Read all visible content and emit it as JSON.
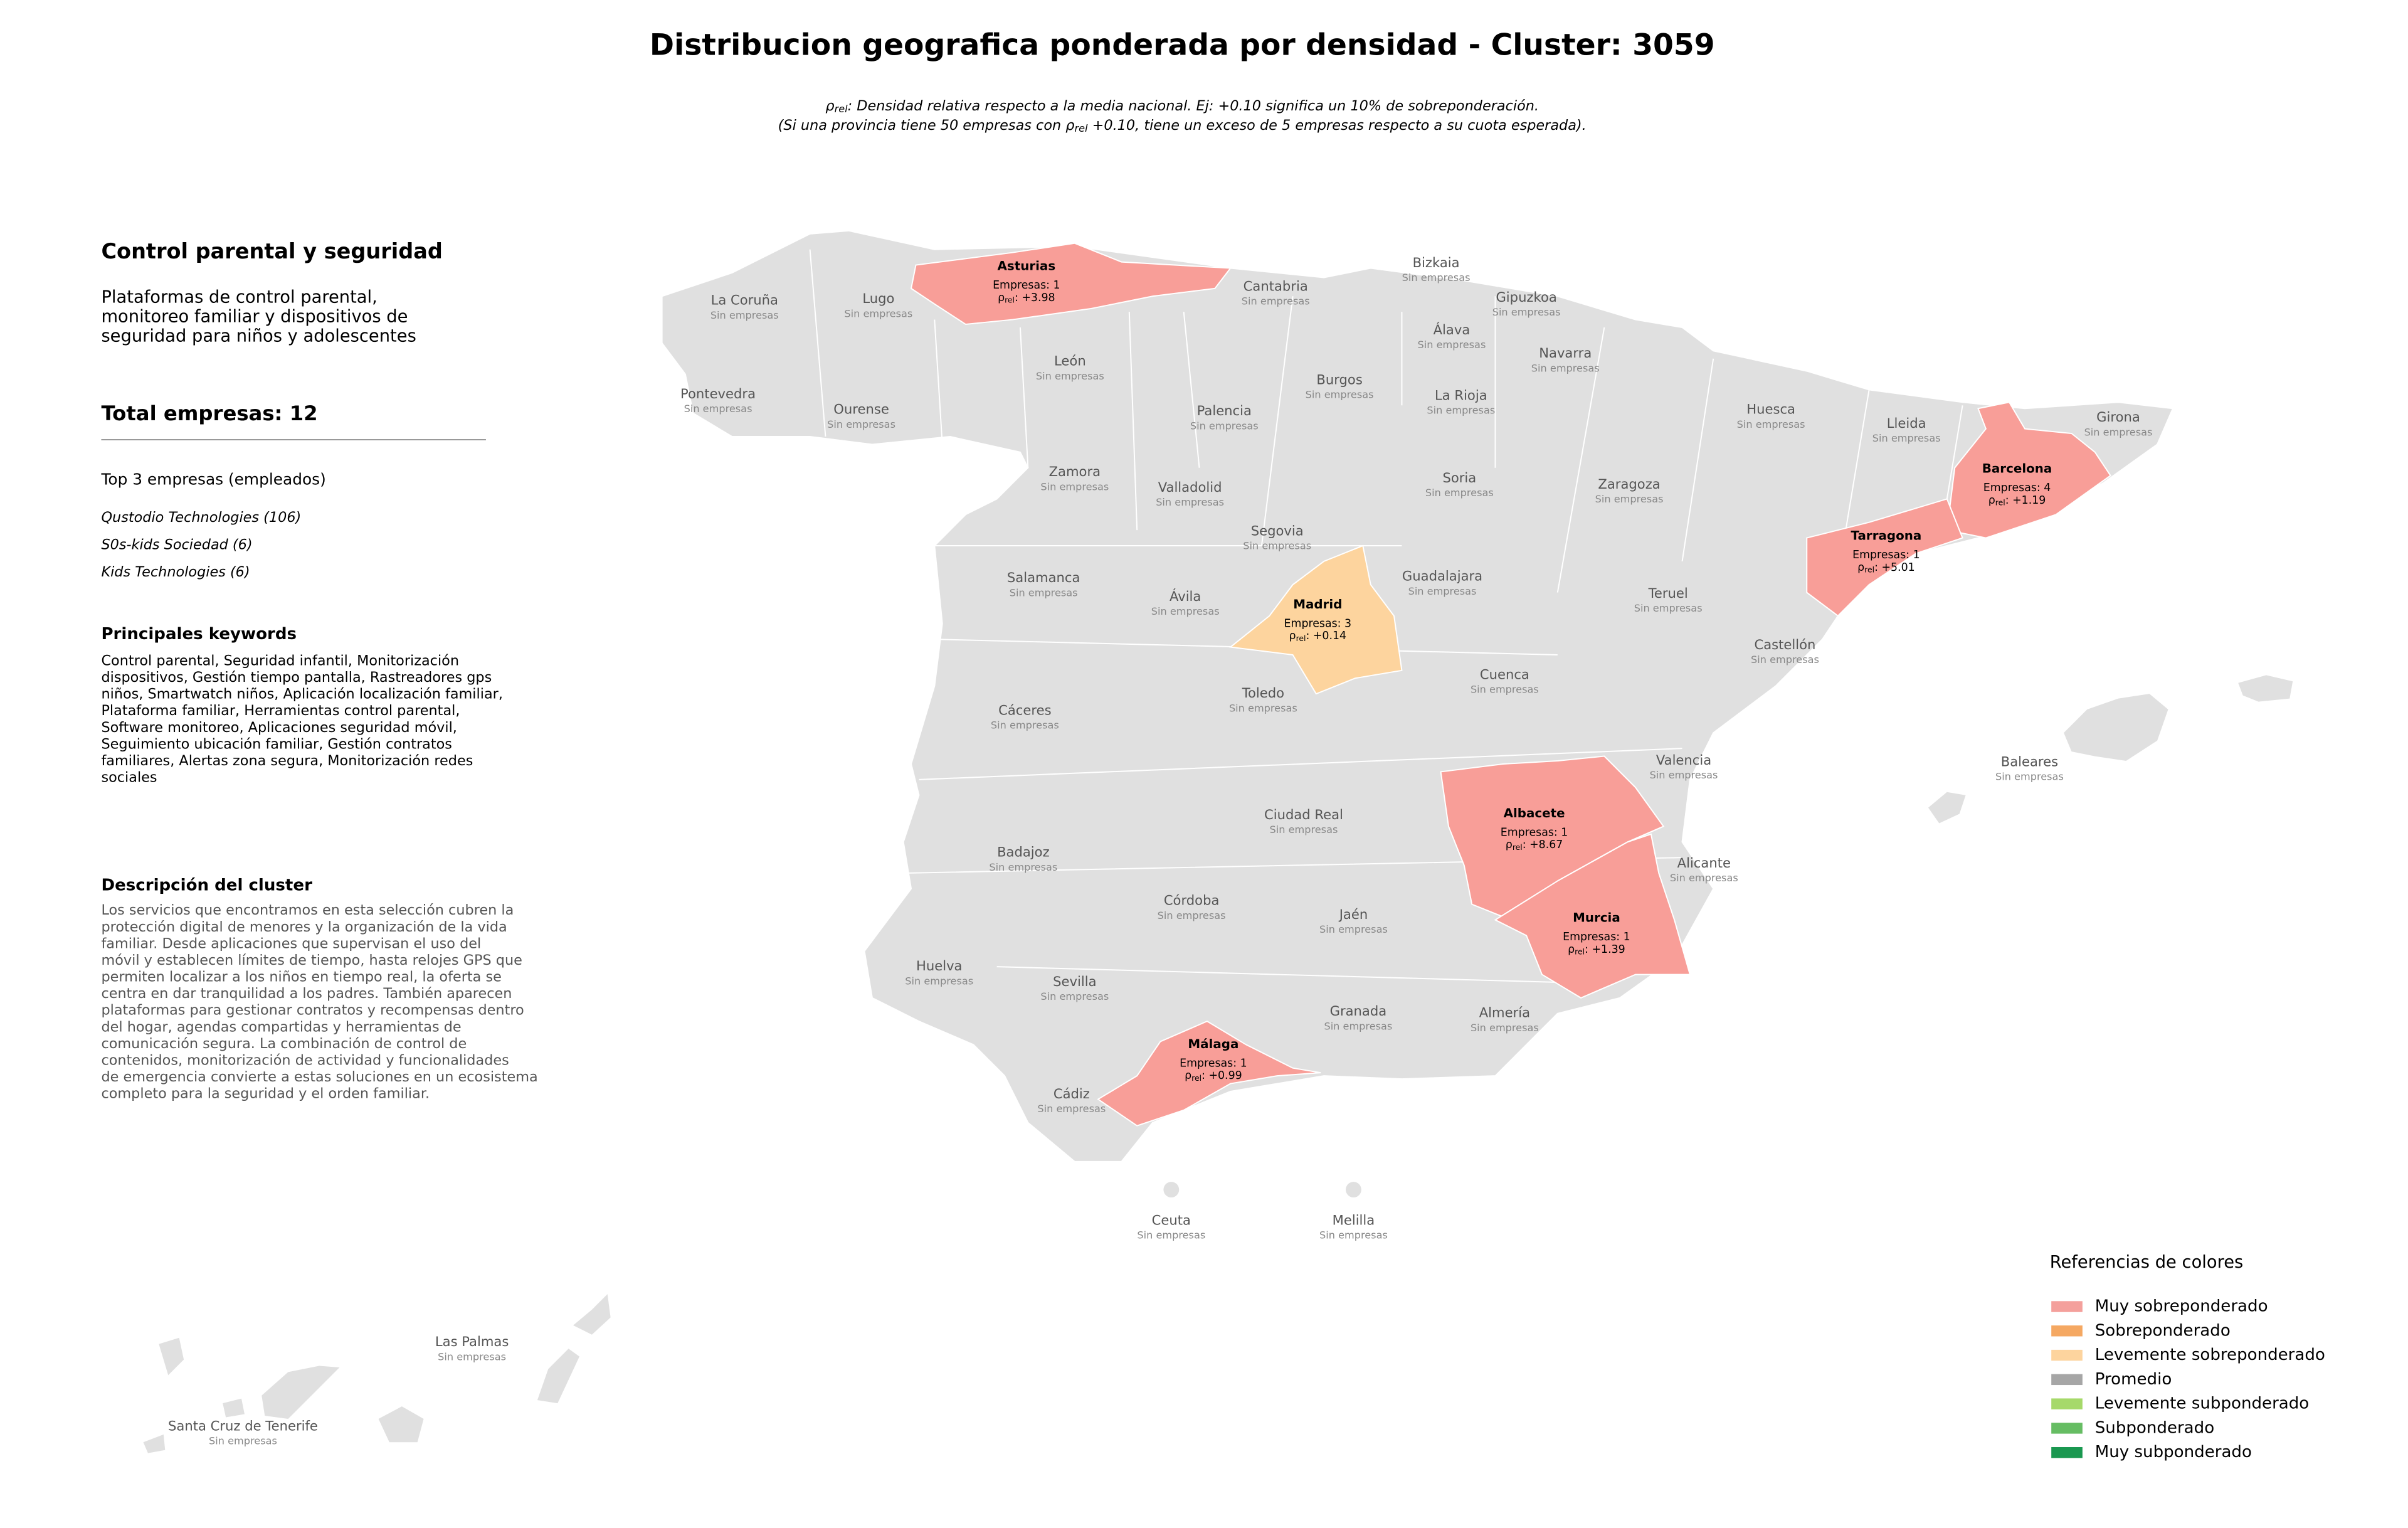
{
  "title": "Distribucion geografica ponderada por densidad - Cluster: 3059",
  "note_lines": [
    {
      "parts": [
        "ρ",
        "rel",
        ": Densidad relativa respecto a la media nacional. Ej: +0.10 significa un 10% de sobreponderación."
      ]
    },
    {
      "parts": [
        "(Si una provincia tiene 50 empresas con ρ",
        "rel",
        " +0.10, tiene un exceso de 5 empresas respecto a su cuota esperada)."
      ]
    }
  ],
  "panel": {
    "heading": "Control parental y seguridad",
    "description_lines": [
      "Plataformas de control parental,",
      "monitoreo familiar y dispositivos de",
      "seguridad para niños y adolescentes"
    ],
    "total": "Total empresas: 12",
    "top_title": "Top 3 empresas (empleados)",
    "top": [
      "Qustodio Technologies (106)",
      "S0s-kids Sociedad (6)",
      "Kids Technologies (6)"
    ],
    "keywords_title": "Principales keywords",
    "keywords_lines": [
      "Control parental, Seguridad infantil, Monitorización",
      "dispositivos, Gestión tiempo pantalla, Rastreadores gps",
      "niños, Smartwatch niños, Aplicación localización familiar,",
      "Plataforma familiar, Herramientas control parental,",
      "Software monitoreo, Aplicaciones seguridad móvil,",
      "Seguimiento ubicación familiar, Gestión contratos",
      "familiares, Alertas zona segura, Monitorización redes",
      "sociales"
    ],
    "cluster_title": "Descripción del cluster",
    "cluster_lines": [
      "Los servicios que encontramos en esta selección cubren la",
      "protección digital de menores y la organización de la vida",
      "familiar. Desde aplicaciones que supervisan el uso del",
      "móvil y establecen límites de tiempo, hasta relojes GPS que",
      "permiten localizar a los niños en tiempo real, la oferta se",
      "centra en dar tranquilidad a los padres. También aparecen",
      "plataformas para gestionar contratos y recompensas dentro",
      "del hogar, agendas compartidas y herramientas de",
      "comunicación segura. La combinación de control de",
      "contenidos, monitorización de actividad y funcionalidades",
      "de emergencia convierte a estas soluciones en un ecosistema",
      "completo para la seguridad y el orden familiar."
    ]
  },
  "provinces": [
    {
      "name": "La Coruña",
      "status": "Sin empresas"
    },
    {
      "name": "Lugo",
      "status": "Sin empresas"
    },
    {
      "name": "Asturias",
      "empresas": "Empresas: 1",
      "density": [
        "ρ",
        "rel",
        ": +3.98"
      ],
      "color": "#f89e98"
    },
    {
      "name": "Cantabria",
      "status": "Sin empresas"
    },
    {
      "name": "Bizkaia",
      "status": "Sin empresas"
    },
    {
      "name": "Gipuzkoa",
      "status": "Sin empresas"
    },
    {
      "name": "Álava",
      "status": "Sin empresas"
    },
    {
      "name": "Navarra",
      "status": "Sin empresas"
    },
    {
      "name": "La Rioja",
      "status": "Sin empresas"
    },
    {
      "name": "Burgos",
      "status": "Sin empresas"
    },
    {
      "name": "León",
      "status": "Sin empresas"
    },
    {
      "name": "Palencia",
      "status": "Sin empresas"
    },
    {
      "name": "Pontevedra",
      "status": "Sin empresas"
    },
    {
      "name": "Ourense",
      "status": "Sin empresas"
    },
    {
      "name": "Zamora",
      "status": "Sin empresas"
    },
    {
      "name": "Valladolid",
      "status": "Sin empresas"
    },
    {
      "name": "Soria",
      "status": "Sin empresas"
    },
    {
      "name": "Zaragoza",
      "status": "Sin empresas"
    },
    {
      "name": "Huesca",
      "status": "Sin empresas"
    },
    {
      "name": "Lleida",
      "status": "Sin empresas"
    },
    {
      "name": "Girona",
      "status": "Sin empresas"
    },
    {
      "name": "Barcelona",
      "empresas": "Empresas: 4",
      "density": [
        "ρ",
        "rel",
        ": +1.19"
      ],
      "color": "#f89e98"
    },
    {
      "name": "Tarragona",
      "empresas": "Empresas: 1",
      "density": [
        "ρ",
        "rel",
        ": +5.01"
      ],
      "color": "#f89e98"
    },
    {
      "name": "Segovia",
      "status": "Sin empresas"
    },
    {
      "name": "Salamanca",
      "status": "Sin empresas"
    },
    {
      "name": "Ávila",
      "status": "Sin empresas"
    },
    {
      "name": "Madrid",
      "empresas": "Empresas: 3",
      "density": [
        "ρ",
        "rel",
        ": +0.14"
      ],
      "color": "#fdd49e"
    },
    {
      "name": "Guadalajara",
      "status": "Sin empresas"
    },
    {
      "name": "Teruel",
      "status": "Sin empresas"
    },
    {
      "name": "Castellón",
      "status": "Sin empresas"
    },
    {
      "name": "Cuenca",
      "status": "Sin empresas"
    },
    {
      "name": "Toledo",
      "status": "Sin empresas"
    },
    {
      "name": "Cáceres",
      "status": "Sin empresas"
    },
    {
      "name": "Valencia",
      "status": "Sin empresas"
    },
    {
      "name": "Albacete",
      "empresas": "Empresas: 1",
      "density": [
        "ρ",
        "rel",
        ": +8.67"
      ],
      "color": "#f89e98"
    },
    {
      "name": "Ciudad Real",
      "status": "Sin empresas"
    },
    {
      "name": "Badajoz",
      "status": "Sin empresas"
    },
    {
      "name": "Alicante",
      "status": "Sin empresas"
    },
    {
      "name": "Córdoba",
      "status": "Sin empresas"
    },
    {
      "name": "Jaén",
      "status": "Sin empresas"
    },
    {
      "name": "Murcia",
      "empresas": "Empresas: 1",
      "density": [
        "ρ",
        "rel",
        ": +1.39"
      ],
      "color": "#f89e98"
    },
    {
      "name": "Huelva",
      "status": "Sin empresas"
    },
    {
      "name": "Sevilla",
      "status": "Sin empresas"
    },
    {
      "name": "Granada",
      "status": "Sin empresas"
    },
    {
      "name": "Almería",
      "status": "Sin empresas"
    },
    {
      "name": "Málaga",
      "empresas": "Empresas: 1",
      "density": [
        "ρ",
        "rel",
        ": +0.99"
      ],
      "color": "#f89e98"
    },
    {
      "name": "Cádiz",
      "status": "Sin empresas"
    },
    {
      "name": "Ceuta",
      "status": "Sin empresas"
    },
    {
      "name": "Melilla",
      "status": "Sin empresas"
    },
    {
      "name": "Baleares",
      "status": "Sin empresas"
    },
    {
      "name": "Las Palmas",
      "status": "Sin empresas"
    },
    {
      "name": "Santa Cruz de Tenerife",
      "status": "Sin empresas"
    }
  ],
  "legend": {
    "title": "Referencias de colores",
    "items": [
      {
        "label": "Muy sobreponderado",
        "color": "#f4a09c"
      },
      {
        "label": "Sobreponderado",
        "color": "#f5a862"
      },
      {
        "label": "Levemente sobreponderado",
        "color": "#fdd49e"
      },
      {
        "label": "Promedio",
        "color": "#a6a6a6"
      },
      {
        "label": "Levemente subponderado",
        "color": "#a6d96a"
      },
      {
        "label": "Subponderado",
        "color": "#66bd63"
      },
      {
        "label": "Muy subponderado",
        "color": "#1a9850"
      }
    ]
  }
}
